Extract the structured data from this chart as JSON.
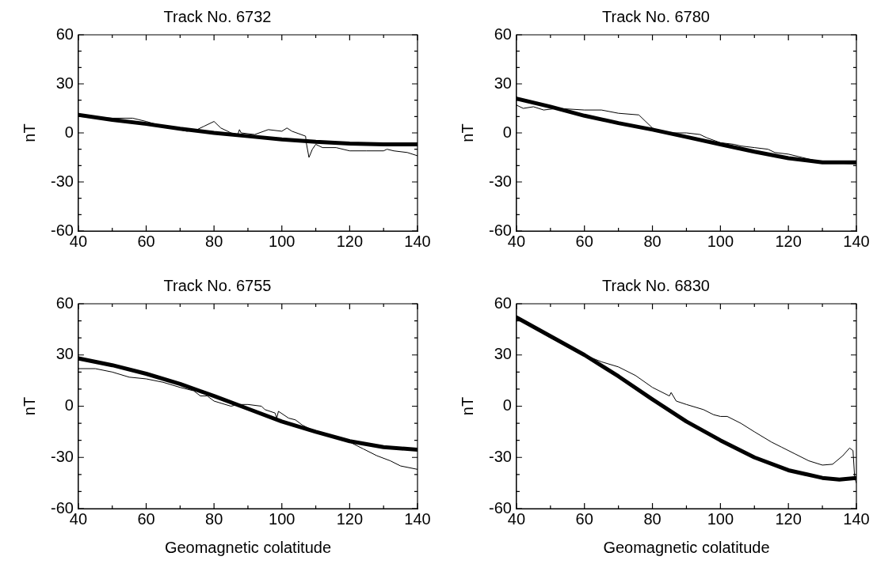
{
  "chart_data": [
    {
      "type": "line",
      "title": "Track No. 6732",
      "ylabel": "nT",
      "xlim": [
        40,
        140
      ],
      "ylim": [
        -60,
        60
      ],
      "xticks": [
        40,
        {
          "value": 50,
          "label": null
        },
        60,
        {
          "value": 70,
          "label": null
        },
        80,
        {
          "value": 90,
          "label": null
        },
        100,
        {
          "value": 110,
          "label": null
        },
        120,
        {
          "value": 130,
          "label": null
        },
        140
      ],
      "yticks": [
        -60,
        {
          "value": -50,
          "label": null
        },
        {
          "value": -40,
          "label": null
        },
        -30,
        {
          "value": -20,
          "label": null
        },
        {
          "value": -10,
          "label": null
        },
        0,
        {
          "value": 10,
          "label": null
        },
        {
          "value": 20,
          "label": null
        },
        30,
        {
          "value": 40,
          "label": null
        },
        {
          "value": 50,
          "label": null
        },
        60
      ],
      "grid": false,
      "legend": false,
      "marker": "none",
      "line_style": "solid",
      "series": [
        {
          "color": "#000000",
          "x": [
            40,
            50,
            56,
            60,
            65,
            72,
            75,
            77,
            80,
            82,
            85,
            87,
            87.5,
            88,
            92,
            96,
            100,
            101.5,
            103,
            107,
            107.2,
            108,
            109,
            110,
            111,
            112,
            116,
            120,
            125,
            130,
            131,
            133,
            137,
            140
          ],
          "values": [
            10,
            9,
            9,
            7,
            4,
            1,
            2,
            4,
            7,
            3,
            0,
            -1,
            2,
            0,
            -1,
            2,
            1,
            3,
            1,
            -2,
            -6,
            -15,
            -10,
            -7,
            -8,
            -9,
            -9,
            -11,
            -11,
            -11,
            -10,
            -11,
            -12,
            -14
          ]
        },
        {
          "color": "#000000",
          "x": [
            40,
            50,
            60,
            70,
            80,
            90,
            100,
            110,
            120,
            130,
            140
          ],
          "values": [
            11,
            8,
            5.5,
            2.5,
            0,
            -2,
            -4,
            -5.5,
            -6.5,
            -7,
            -7
          ]
        }
      ]
    },
    {
      "type": "line",
      "title": "Track No. 6780",
      "ylabel": "nT",
      "xlim": [
        40,
        140
      ],
      "ylim": [
        -60,
        60
      ],
      "xticks": [
        40,
        {
          "value": 50,
          "label": null
        },
        60,
        {
          "value": 70,
          "label": null
        },
        80,
        {
          "value": 90,
          "label": null
        },
        100,
        {
          "value": 110,
          "label": null
        },
        120,
        {
          "value": 130,
          "label": null
        },
        140
      ],
      "yticks": [
        -60,
        {
          "value": -50,
          "label": null
        },
        {
          "value": -40,
          "label": null
        },
        -30,
        {
          "value": -20,
          "label": null
        },
        {
          "value": -10,
          "label": null
        },
        0,
        {
          "value": 10,
          "label": null
        },
        {
          "value": 20,
          "label": null
        },
        30,
        {
          "value": 40,
          "label": null
        },
        {
          "value": 50,
          "label": null
        },
        60
      ],
      "grid": false,
      "legend": false,
      "marker": "none",
      "line_style": "solid",
      "series": [
        {
          "color": "#000000",
          "x": [
            40,
            42,
            45,
            48,
            52,
            60,
            65,
            70,
            76,
            78,
            80,
            81,
            85,
            88,
            90,
            94,
            96,
            100,
            104,
            106,
            110,
            114,
            116,
            120,
            124,
            128,
            130,
            140
          ],
          "values": [
            17,
            15,
            16,
            14,
            15,
            14,
            14,
            12,
            11,
            7,
            3,
            2,
            0,
            0,
            0,
            -1,
            -3,
            -6,
            -7,
            -8,
            -9,
            -10,
            -12,
            -13,
            -15,
            -17,
            -18,
            -19
          ]
        },
        {
          "color": "#000000",
          "x": [
            40,
            50,
            60,
            70,
            80,
            90,
            100,
            110,
            120,
            130,
            140
          ],
          "values": [
            21,
            16,
            10.5,
            6,
            2,
            -2.5,
            -7,
            -11.5,
            -15.5,
            -18,
            -18
          ]
        }
      ]
    },
    {
      "type": "line",
      "title": "Track No. 6755",
      "xlabel": "Geomagnetic colatitude",
      "ylabel": "nT",
      "xlim": [
        40,
        140
      ],
      "ylim": [
        -60,
        60
      ],
      "xticks": [
        40,
        {
          "value": 50,
          "label": null
        },
        60,
        {
          "value": 70,
          "label": null
        },
        80,
        {
          "value": 90,
          "label": null
        },
        100,
        {
          "value": 110,
          "label": null
        },
        120,
        {
          "value": 130,
          "label": null
        },
        140
      ],
      "yticks": [
        -60,
        {
          "value": -50,
          "label": null
        },
        {
          "value": -40,
          "label": null
        },
        -30,
        {
          "value": -20,
          "label": null
        },
        {
          "value": -10,
          "label": null
        },
        0,
        {
          "value": 10,
          "label": null
        },
        {
          "value": 20,
          "label": null
        },
        30,
        {
          "value": 40,
          "label": null
        },
        {
          "value": 50,
          "label": null
        },
        60
      ],
      "grid": false,
      "legend": false,
      "marker": "none",
      "line_style": "solid",
      "series": [
        {
          "color": "#000000",
          "x": [
            40,
            45,
            50,
            55,
            60,
            65,
            70,
            74,
            76,
            78,
            80,
            85,
            87,
            90,
            94,
            95,
            98,
            98.5,
            99,
            102,
            104,
            106,
            110,
            120,
            124,
            128,
            132,
            135,
            140
          ],
          "values": [
            22,
            22,
            20,
            17,
            16,
            14,
            11,
            9,
            6,
            6,
            3,
            0,
            1,
            1,
            0,
            -2,
            -4,
            -7,
            -3,
            -7,
            -8,
            -11,
            -15,
            -21,
            -25,
            -29,
            -32,
            -35,
            -37
          ]
        },
        {
          "color": "#000000",
          "x": [
            40,
            50,
            60,
            70,
            80,
            90,
            100,
            110,
            120,
            130,
            140
          ],
          "values": [
            28,
            24,
            19,
            13,
            6,
            -1.5,
            -9,
            -15,
            -20.5,
            -24,
            -25.5
          ]
        }
      ]
    },
    {
      "type": "line",
      "title": "Track No. 6830",
      "xlabel": "Geomagnetic colatitude",
      "ylabel": "nT",
      "xlim": [
        40,
        140
      ],
      "ylim": [
        -60,
        60
      ],
      "xticks": [
        40,
        {
          "value": 50,
          "label": null
        },
        60,
        {
          "value": 70,
          "label": null
        },
        80,
        {
          "value": 90,
          "label": null
        },
        100,
        {
          "value": 110,
          "label": null
        },
        120,
        {
          "value": 130,
          "label": null
        },
        140
      ],
      "yticks": [
        -60,
        {
          "value": -50,
          "label": null
        },
        {
          "value": -40,
          "label": null
        },
        -30,
        {
          "value": -20,
          "label": null
        },
        {
          "value": -10,
          "label": null
        },
        0,
        {
          "value": 10,
          "label": null
        },
        {
          "value": 20,
          "label": null
        },
        30,
        {
          "value": 40,
          "label": null
        },
        {
          "value": 50,
          "label": null
        },
        60
      ],
      "grid": false,
      "legend": false,
      "marker": "none",
      "line_style": "solid",
      "series": [
        {
          "color": "#000000",
          "x": [
            40,
            50,
            60,
            65,
            70,
            75,
            80,
            85,
            85.5,
            87,
            90,
            95,
            98,
            100,
            102,
            106,
            110,
            115,
            118,
            122,
            126,
            130,
            133,
            136,
            138,
            139,
            139.5,
            140
          ],
          "values": [
            52,
            40,
            30,
            26,
            23,
            18,
            11,
            6,
            8,
            3,
            1,
            -2,
            -5,
            -6,
            -6,
            -10,
            -15,
            -21,
            -24,
            -28,
            -32,
            -34.5,
            -34,
            -29,
            -24.5,
            -26,
            -42,
            -45
          ]
        },
        {
          "color": "#000000",
          "x": [
            40,
            50,
            60,
            70,
            80,
            90,
            100,
            110,
            120,
            130,
            135,
            140
          ],
          "values": [
            52,
            41,
            30,
            17.5,
            4,
            -9,
            -20,
            -30,
            -37.5,
            -42,
            -43,
            -42
          ]
        }
      ]
    }
  ]
}
